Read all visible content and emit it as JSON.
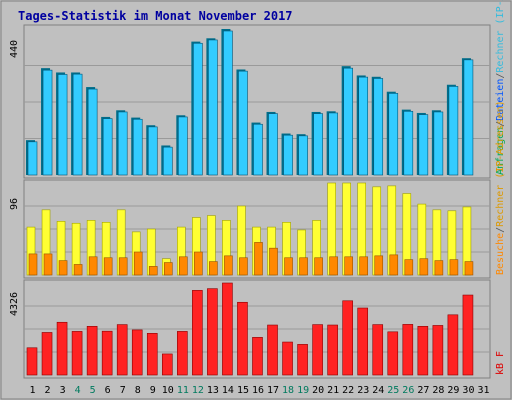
{
  "colors": {
    "background": "#c0c0c0",
    "title": "#0000a0",
    "hits": "#00ccff",
    "hits_shadow": "#006e8a",
    "files": "#33ccff",
    "hosts": "#ffff33",
    "hosts_shadow": "#a0a000",
    "visits": "#ff8800",
    "visits_shadow": "#995200",
    "kb": "#ff2222",
    "kb_shadow": "#8a0000",
    "weekend_day": "#007a5e",
    "weekday": "#000000"
  },
  "chart_data": {
    "type": "bar",
    "title": "Tages-Statistik im Monat November 2017",
    "categories": [
      "1",
      "2",
      "3",
      "4",
      "5",
      "6",
      "7",
      "8",
      "9",
      "10",
      "11",
      "12",
      "13",
      "14",
      "15",
      "16",
      "17",
      "18",
      "19",
      "20",
      "21",
      "22",
      "23",
      "24",
      "25",
      "26",
      "27",
      "28",
      "29",
      "30",
      "31"
    ],
    "weekend_days": [
      "4",
      "5",
      "11",
      "12",
      "18",
      "19",
      "25",
      "26"
    ],
    "panels": [
      {
        "id": "top",
        "ymax_label": "440",
        "ylim": [
          0,
          440
        ],
        "legend": [
          {
            "text": "Anfragen",
            "color": "#00aa55"
          },
          {
            "text": "/",
            "color": "#555555"
          },
          {
            "text": "Dateien",
            "color": "#0055ff"
          },
          {
            "text": "/",
            "color": "#555555"
          },
          {
            "text": "Rechner (IP-Adressen)",
            "color": "#33bbdd"
          }
        ],
        "series": [
          {
            "name": "Anfragen",
            "values": [
              105,
              322,
              309,
              309,
              265,
              175,
              195,
              173,
              150,
              89,
              180,
              402,
              412,
              440,
              318,
              158,
              190,
              125,
              123,
              190,
              192,
              328,
              300,
              296,
              251,
              197,
              187,
              195,
              272,
              352,
              0
            ]
          },
          {
            "name": "Dateien",
            "values": [
              100,
              316,
              303,
              304,
              259,
              170,
              190,
              168,
              145,
              84,
              175,
              397,
              407,
              434,
              313,
              153,
              185,
              120,
              118,
              185,
              187,
              322,
              295,
              291,
              246,
              192,
              182,
              190,
              267,
              347,
              0
            ]
          }
        ]
      },
      {
        "id": "middle",
        "ymax_label": "96",
        "ylim": [
          0,
          96
        ],
        "legend": [
          {
            "text": "Besuche",
            "color": "#ff8800"
          },
          {
            "text": "/",
            "color": "#555555"
          },
          {
            "text": "Rechner (IP-Adressen)",
            "color": "#dd9900"
          }
        ],
        "series": [
          {
            "name": "Rechner (IP-Adressen)",
            "values": [
              50,
              68,
              56,
              54,
              57,
              55,
              68,
              45,
              48,
              17,
              50,
              60,
              62,
              57,
              72,
              50,
              50,
              55,
              47,
              57,
              96,
              96,
              96,
              92,
              93,
              85,
              74,
              68,
              67,
              71,
              0
            ]
          },
          {
            "name": "Besuche",
            "values": [
              22,
              22,
              15,
              11,
              19,
              18,
              18,
              24,
              9,
              13,
              19,
              24,
              14,
              20,
              18,
              34,
              28,
              18,
              18,
              18,
              19,
              19,
              19,
              20,
              21,
              16,
              17,
              15,
              16,
              14,
              0
            ]
          }
        ]
      },
      {
        "id": "bottom",
        "ymax_label": "4326",
        "ylim": [
          0,
          4326
        ],
        "legend": [
          {
            "text": "kB F",
            "color": "#dd0000"
          }
        ],
        "series": [
          {
            "name": "kB F",
            "values": [
              1280,
              2000,
              2480,
              2050,
              2290,
              2060,
              2370,
              2120,
              1960,
              990,
              2050,
              3980,
              4060,
              4326,
              3420,
              1770,
              2350,
              1550,
              1440,
              2370,
              2350,
              3490,
              3150,
              2370,
              2030,
              2380,
              2290,
              2330,
              2830,
              3760,
              0
            ]
          }
        ]
      }
    ]
  }
}
